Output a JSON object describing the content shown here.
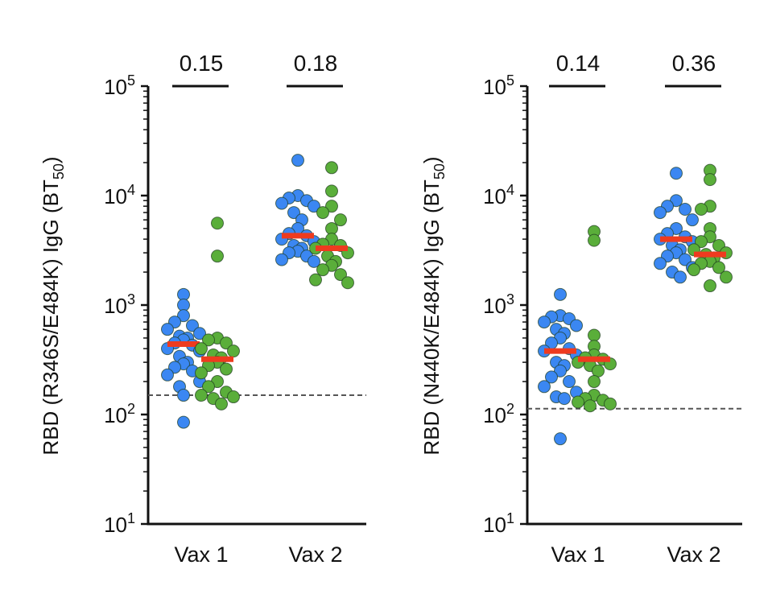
{
  "colors": {
    "blue": "#3b87f2",
    "green": "#5aae3a",
    "median": "#ee3b1f",
    "axis": "#111111",
    "lod": "#555555"
  },
  "chart_data": [
    {
      "type": "scatter",
      "ylabel_main": "RBD (R346S/E484K) IgG (BT",
      "ylabel_sub": "50",
      "ylabel_close": ")",
      "yscale": "log",
      "ylim": [
        10,
        100000
      ],
      "yticks": [
        {
          "base": "10",
          "exp": "1"
        },
        {
          "base": "10",
          "exp": "2"
        },
        {
          "base": "10",
          "exp": "3"
        },
        {
          "base": "10",
          "exp": "4"
        },
        {
          "base": "10",
          "exp": "5"
        }
      ],
      "categories": [
        "Vax 1",
        "Vax 2"
      ],
      "detection_limit": 150,
      "pvalues": [
        "0.15",
        "0.18"
      ],
      "groups": [
        {
          "category": "Vax 1",
          "color": "blue",
          "median": 440,
          "values": [
            1250,
            1000,
            800,
            700,
            650,
            600,
            550,
            520,
            500,
            480,
            450,
            430,
            400,
            380,
            340,
            300,
            290,
            270,
            250,
            230,
            200,
            180,
            150,
            85
          ]
        },
        {
          "category": "Vax 1",
          "color": "green",
          "median": 320,
          "values": [
            5600,
            2800,
            500,
            480,
            450,
            400,
            380,
            350,
            330,
            300,
            280,
            260,
            240,
            200,
            180,
            160,
            150,
            145,
            140,
            125
          ]
        },
        {
          "category": "Vax 2",
          "color": "blue",
          "median": 4300,
          "values": [
            21000,
            10000,
            9500,
            9000,
            8500,
            8000,
            7000,
            6000,
            5000,
            4500,
            4300,
            4000,
            3800,
            3500,
            3300,
            3100,
            3000,
            2800,
            2600,
            2500
          ]
        },
        {
          "category": "Vax 2",
          "color": "green",
          "median": 3300,
          "values": [
            18000,
            11000,
            8000,
            7000,
            6000,
            5000,
            4000,
            3600,
            3500,
            3300,
            3000,
            2800,
            2500,
            2300,
            2100,
            1900,
            1700,
            1600
          ]
        }
      ]
    },
    {
      "type": "scatter",
      "ylabel_main": "RBD (N440K/E484K) IgG (BT",
      "ylabel_sub": "50",
      "ylabel_close": ")",
      "yscale": "log",
      "ylim": [
        10,
        100000
      ],
      "yticks": [
        {
          "base": "10",
          "exp": "1"
        },
        {
          "base": "10",
          "exp": "2"
        },
        {
          "base": "10",
          "exp": "3"
        },
        {
          "base": "10",
          "exp": "4"
        },
        {
          "base": "10",
          "exp": "5"
        }
      ],
      "categories": [
        "Vax 1",
        "Vax 2"
      ],
      "detection_limit": 113,
      "pvalues": [
        "0.14",
        "0.36"
      ],
      "groups": [
        {
          "category": "Vax 1",
          "color": "blue",
          "median": 380,
          "values": [
            1250,
            800,
            780,
            750,
            700,
            650,
            600,
            550,
            500,
            450,
            400,
            380,
            350,
            300,
            280,
            250,
            220,
            200,
            180,
            160,
            145,
            140,
            60
          ]
        },
        {
          "category": "Vax 1",
          "color": "green",
          "median": 320,
          "values": [
            4700,
            3900,
            530,
            420,
            350,
            330,
            320,
            300,
            290,
            280,
            250,
            200,
            150,
            140,
            135,
            130,
            125,
            120
          ]
        },
        {
          "category": "Vax 2",
          "color": "blue",
          "median": 4000,
          "values": [
            16000,
            9000,
            8000,
            7500,
            7000,
            6000,
            5000,
            4500,
            4200,
            4000,
            3800,
            3500,
            3200,
            3000,
            2800,
            2600,
            2400,
            2200,
            2000,
            1800
          ]
        },
        {
          "category": "Vax 2",
          "color": "green",
          "median": 2900,
          "values": [
            17000,
            14000,
            8000,
            7500,
            5000,
            4200,
            3800,
            3500,
            3200,
            3000,
            2900,
            2700,
            2500,
            2400,
            2200,
            2100,
            1800,
            1500
          ]
        }
      ]
    }
  ]
}
